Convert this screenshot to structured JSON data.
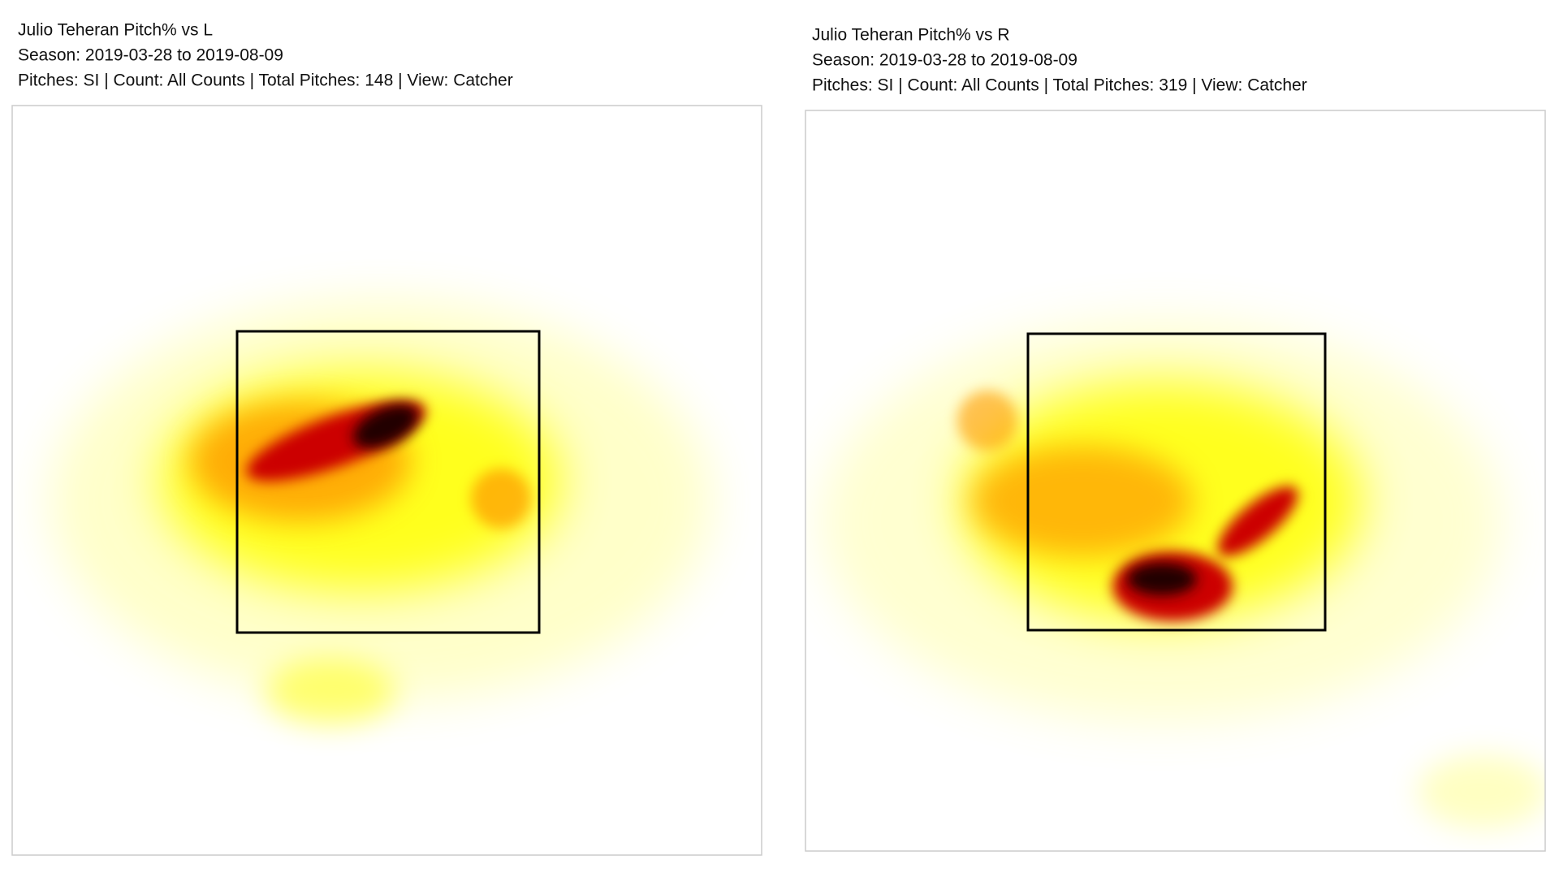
{
  "chart_data": [
    {
      "type": "heatmap",
      "title": "Julio Teheran Pitch% vs L",
      "subtitle": [
        "Season: 2019-03-28 to 2019-08-09",
        "Pitches: SI | Count: All Counts | Total Pitches: 148 | View: Catcher"
      ]
    },
    {
      "type": "heatmap",
      "title": "Julio Teheran Pitch% vs R",
      "subtitle": [
        "Season: 2019-03-28 to 2019-08-09",
        "Pitches: SI | Count: All Counts | Total Pitches: 319 | View: Catcher"
      ]
    }
  ]
}
